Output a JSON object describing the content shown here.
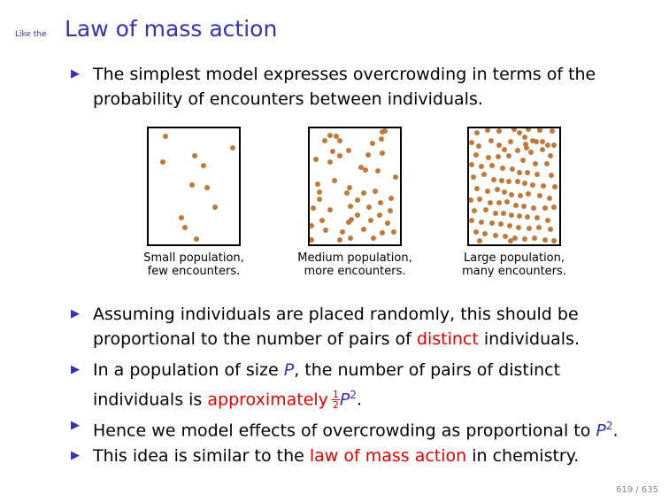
{
  "header": {
    "subtitle": "Like the",
    "title": "Law of mass action"
  },
  "intro_bullet": {
    "line1": "The simplest model expresses overcrowding in terms of the",
    "line2": "probability of encounters between individuals."
  },
  "panels": [
    {
      "caption_line1": "Small population,",
      "caption_line2": "few encounters.",
      "dots": [
        [
          19,
          9
        ],
        [
          95,
          22
        ],
        [
          52,
          31
        ],
        [
          62,
          42
        ],
        [
          16,
          38
        ],
        [
          49,
          64
        ],
        [
          66,
          67
        ],
        [
          75,
          89
        ],
        [
          37,
          101
        ],
        [
          41,
          112
        ],
        [
          54,
          125
        ]
      ]
    },
    {
      "caption_line1": "Medium population,",
      "caption_line2": "more encounters.",
      "dots": [
        [
          82,
          4
        ],
        [
          81,
          12
        ],
        [
          23,
          8
        ],
        [
          34,
          14
        ],
        [
          17,
          14
        ],
        [
          71,
          17
        ],
        [
          26,
          26
        ],
        [
          44,
          25
        ],
        [
          66,
          30
        ],
        [
          82,
          28
        ],
        [
          34,
          31
        ],
        [
          7,
          35
        ],
        [
          23,
          38
        ],
        [
          77,
          48
        ],
        [
          58,
          44
        ],
        [
          97,
          55
        ],
        [
          28,
          59
        ],
        [
          9,
          63
        ],
        [
          45,
          67
        ],
        [
          61,
          73
        ],
        [
          74,
          71
        ],
        [
          11,
          72
        ],
        [
          42,
          73
        ],
        [
          92,
          79
        ],
        [
          80,
          84
        ],
        [
          46,
          88
        ],
        [
          4,
          90
        ],
        [
          23,
          92
        ],
        [
          67,
          89
        ],
        [
          91,
          93
        ],
        [
          54,
          98
        ],
        [
          47,
          103
        ],
        [
          44,
          106
        ],
        [
          14,
          104
        ],
        [
          2,
          110
        ],
        [
          69,
          104
        ],
        [
          88,
          107
        ],
        [
          18,
          115
        ],
        [
          61,
          114
        ],
        [
          82,
          118
        ],
        [
          46,
          124
        ],
        [
          72,
          124
        ],
        [
          34,
          126
        ],
        [
          2,
          126
        ],
        [
          37,
          117
        ],
        [
          95,
          117
        ],
        [
          79,
          98
        ],
        [
          11,
          80
        ],
        [
          54,
          81
        ],
        [
          63,
          47
        ],
        [
          30,
          9
        ],
        [
          85,
          3
        ]
      ]
    },
    {
      "caption_line1": "Large population,",
      "caption_line2": "many encounters.",
      "dots": [
        [
          9,
          5
        ],
        [
          21,
          2
        ],
        [
          34,
          3
        ],
        [
          51,
          1
        ],
        [
          57,
          5
        ],
        [
          67,
          1
        ],
        [
          80,
          2
        ],
        [
          94,
          3
        ],
        [
          63,
          10
        ],
        [
          72,
          14
        ],
        [
          76,
          15
        ],
        [
          83,
          15
        ],
        [
          89,
          19
        ],
        [
          96,
          19
        ],
        [
          64,
          18
        ],
        [
          47,
          15
        ],
        [
          25,
          14
        ],
        [
          3,
          16
        ],
        [
          11,
          20
        ],
        [
          34,
          19
        ],
        [
          40,
          24
        ],
        [
          55,
          25
        ],
        [
          65,
          22
        ],
        [
          70,
          27
        ],
        [
          83,
          24
        ],
        [
          92,
          31
        ],
        [
          8,
          30
        ],
        [
          22,
          33
        ],
        [
          33,
          32
        ],
        [
          45,
          31
        ],
        [
          61,
          36
        ],
        [
          75,
          40
        ],
        [
          88,
          40
        ],
        [
          3,
          41
        ],
        [
          14,
          43
        ],
        [
          26,
          42
        ],
        [
          38,
          45
        ],
        [
          49,
          46
        ],
        [
          57,
          50
        ],
        [
          66,
          50
        ],
        [
          77,
          52
        ],
        [
          93,
          53
        ],
        [
          5,
          55
        ],
        [
          17,
          52
        ],
        [
          28,
          58
        ],
        [
          37,
          59
        ],
        [
          45,
          60
        ],
        [
          55,
          60
        ],
        [
          63,
          62
        ],
        [
          72,
          64
        ],
        [
          84,
          65
        ],
        [
          97,
          66
        ],
        [
          9,
          68
        ],
        [
          21,
          71
        ],
        [
          32,
          69
        ],
        [
          40,
          72
        ],
        [
          48,
          75
        ],
        [
          58,
          76
        ],
        [
          67,
          74
        ],
        [
          80,
          76
        ],
        [
          91,
          79
        ],
        [
          2,
          81
        ],
        [
          12,
          80
        ],
        [
          24,
          84
        ],
        [
          34,
          84
        ],
        [
          43,
          83
        ],
        [
          53,
          87
        ],
        [
          62,
          88
        ],
        [
          73,
          90
        ],
        [
          86,
          90
        ],
        [
          96,
          89
        ],
        [
          6,
          93
        ],
        [
          19,
          92
        ],
        [
          30,
          96
        ],
        [
          39,
          96
        ],
        [
          48,
          98
        ],
        [
          57,
          99
        ],
        [
          66,
          100
        ],
        [
          77,
          101
        ],
        [
          89,
          104
        ],
        [
          3,
          104
        ],
        [
          14,
          106
        ],
        [
          26,
          107
        ],
        [
          36,
          108
        ],
        [
          46,
          110
        ],
        [
          56,
          112
        ],
        [
          68,
          113
        ],
        [
          79,
          112
        ],
        [
          92,
          114
        ],
        [
          8,
          117
        ],
        [
          18,
          119
        ],
        [
          30,
          121
        ],
        [
          41,
          122
        ],
        [
          52,
          124
        ],
        [
          63,
          125
        ],
        [
          74,
          124
        ],
        [
          86,
          126
        ],
        [
          96,
          127
        ],
        [
          12,
          127
        ],
        [
          47,
          127
        ]
      ]
    }
  ],
  "bullets": [
    {
      "line1": "Assuming individuals are placed randomly, this should be",
      "line2_pre": "proportional to the number of pairs of ",
      "line2_red": "distinct",
      "line2_post": " individuals."
    },
    {
      "line1_pre": "In a population of size ",
      "line1_var": "P",
      "line1_post": ", the number of pairs of distinct",
      "line2_pre": "individuals is ",
      "line2_red": "approximately",
      "frac_num": "1",
      "frac_den": "2",
      "line2_var": "P",
      "line2_sup": "2",
      "line2_end": "."
    },
    {
      "line1_pre": "Hence we model effects of overcrowding as proportional to ",
      "line1_var": "P",
      "line1_sup": "2",
      "line1_end": "."
    },
    {
      "line1_pre": "This idea is similar to the ",
      "line1_red": "law of mass action",
      "line1_post": " in chemistry."
    }
  ],
  "colors": {
    "accent": "#3333b3",
    "highlight": "#e00000",
    "dot": "#c0793a"
  },
  "icons": {
    "bullet": "triangle-right-icon"
  },
  "footer": {
    "page": "619 / 635"
  }
}
